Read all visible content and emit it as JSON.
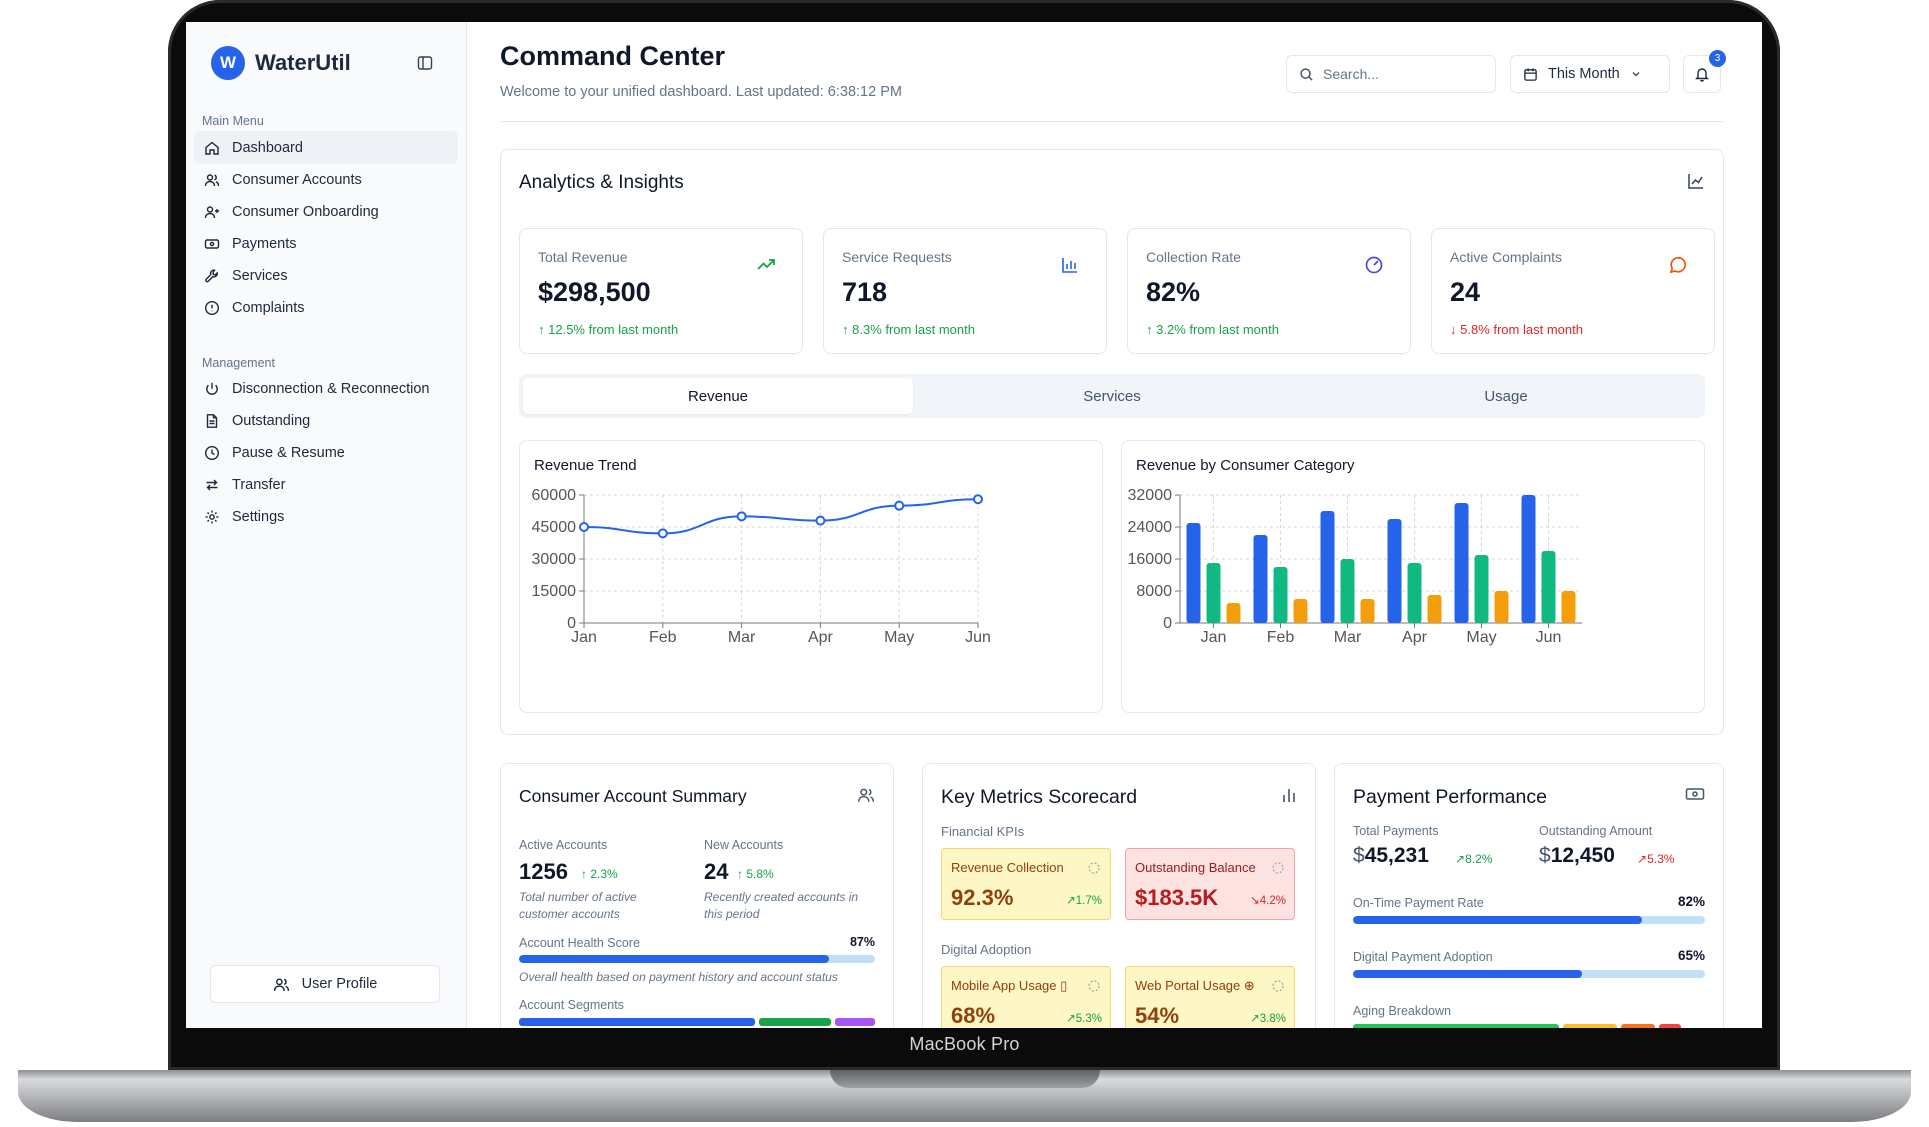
{
  "device": {
    "label": "MacBook Pro"
  },
  "sidebar": {
    "brand": {
      "logo_letter": "W",
      "name": "WaterUtil"
    },
    "main_menu_label": "Main Menu",
    "main_items": [
      {
        "label": "Dashboard",
        "icon": "home-icon"
      },
      {
        "label": "Consumer Accounts",
        "icon": "users-icon"
      },
      {
        "label": "Consumer Onboarding",
        "icon": "user-plus-icon"
      },
      {
        "label": "Payments",
        "icon": "banknote-icon"
      },
      {
        "label": "Services",
        "icon": "wrench-icon"
      },
      {
        "label": "Complaints",
        "icon": "alert-circle-icon"
      }
    ],
    "management_label": "Management",
    "management_items": [
      {
        "label": "Disconnection & Reconnection",
        "icon": "power-icon"
      },
      {
        "label": "Outstanding",
        "icon": "file-text-icon"
      },
      {
        "label": "Pause & Resume",
        "icon": "clock-icon"
      },
      {
        "label": "Transfer",
        "icon": "transfer-arrows-icon"
      },
      {
        "label": "Settings",
        "icon": "gear-icon"
      }
    ],
    "user_profile_label": "User Profile"
  },
  "header": {
    "title": "Command Center",
    "subtitle": "Welcome to your unified dashboard. Last updated: 6:38:12 PM",
    "search_placeholder": "Search...",
    "period": "This Month",
    "notification_count": "3"
  },
  "analytics": {
    "title": "Analytics & Insights",
    "kpis": [
      {
        "label": "Total Revenue",
        "value": "$298,500",
        "change": "12.5% from last month",
        "direction": "up",
        "icon": "trending-up-icon",
        "color": "#16a34a"
      },
      {
        "label": "Service Requests",
        "value": "718",
        "change": "8.3% from last month",
        "direction": "up",
        "icon": "bar-chart-icon",
        "color": "#2563eb"
      },
      {
        "label": "Collection Rate",
        "value": "82%",
        "change": "3.2% from last month",
        "direction": "up",
        "icon": "gauge-icon",
        "color": "#4f46e5"
      },
      {
        "label": "Active Complaints",
        "value": "24",
        "change": "5.8% from last month",
        "direction": "down",
        "icon": "message-circle-icon",
        "color": "#ea580c"
      }
    ],
    "tabs": [
      "Revenue",
      "Services",
      "Usage"
    ],
    "active_tab": "Revenue"
  },
  "chart_data": [
    {
      "type": "line",
      "title": "Revenue Trend",
      "categories": [
        "Jan",
        "Feb",
        "Mar",
        "Apr",
        "May",
        "Jun"
      ],
      "values": [
        45000,
        42000,
        50000,
        48000,
        55000,
        58000
      ],
      "ylim": [
        0,
        60000
      ],
      "yticks": [
        0,
        15000,
        30000,
        45000,
        60000
      ],
      "color": "#2563eb",
      "grid": true
    },
    {
      "type": "bar",
      "title": "Revenue by Consumer Category",
      "categories": [
        "Jan",
        "Feb",
        "Mar",
        "Apr",
        "May",
        "Jun"
      ],
      "series": [
        {
          "values": [
            25000,
            22000,
            28000,
            26000,
            30000,
            32000
          ],
          "color": "#2563eb"
        },
        {
          "values": [
            15000,
            14000,
            16000,
            15000,
            17000,
            18000
          ],
          "color": "#10b981"
        },
        {
          "values": [
            5000,
            6000,
            6000,
            7000,
            8000,
            8000
          ],
          "color": "#f59e0b"
        }
      ],
      "ylim": [
        0,
        32000
      ],
      "yticks": [
        0,
        8000,
        16000,
        24000,
        32000
      ],
      "grid": true
    }
  ],
  "consumer_summary": {
    "title": "Consumer Account Summary",
    "active_label": "Active Accounts",
    "active_value": "1256",
    "active_change": "2.3%",
    "active_note": "Total number of active customer accounts",
    "new_label": "New Accounts",
    "new_value": "24",
    "new_change": "5.8%",
    "new_note": "Recently created accounts in this period",
    "health_label": "Account Health Score",
    "health_pct_text": "87%",
    "health_pct": 87,
    "health_note": "Overall health based on payment history and account status",
    "segments_label": "Account Segments"
  },
  "scorecard": {
    "title": "Key Metrics Scorecard",
    "financial_label": "Financial KPIs",
    "financial": [
      {
        "label": "Revenue Collection",
        "value": "92.3%",
        "change": "1.7%",
        "tone": "yellow"
      },
      {
        "label": "Outstanding Balance",
        "value": "$183.5K",
        "change": "4.2%",
        "tone": "red"
      }
    ],
    "digital_label": "Digital Adoption",
    "digital": [
      {
        "label": "Mobile App Usage",
        "value": "68%",
        "change": "5.3%",
        "tone": "yellow"
      },
      {
        "label": "Web Portal Usage",
        "value": "54%",
        "change": "3.8%",
        "tone": "yellow"
      }
    ]
  },
  "payments": {
    "title": "Payment Performance",
    "total_label": "Total Payments",
    "total_value": "45,231",
    "total_change": "8.2%",
    "outstanding_label": "Outstanding Amount",
    "outstanding_value": "12,450",
    "outstanding_change": "5.3%",
    "currency_symbol": "$",
    "ontime_label": "On-Time Payment Rate",
    "ontime_pct_text": "82%",
    "ontime_pct": 82,
    "digital_label": "Digital Payment Adoption",
    "digital_pct_text": "65%",
    "digital_pct": 65,
    "aging_label": "Aging Breakdown",
    "aging_colors": [
      "#22c55e",
      "#fbbf24",
      "#f97316",
      "#ef4444"
    ]
  }
}
